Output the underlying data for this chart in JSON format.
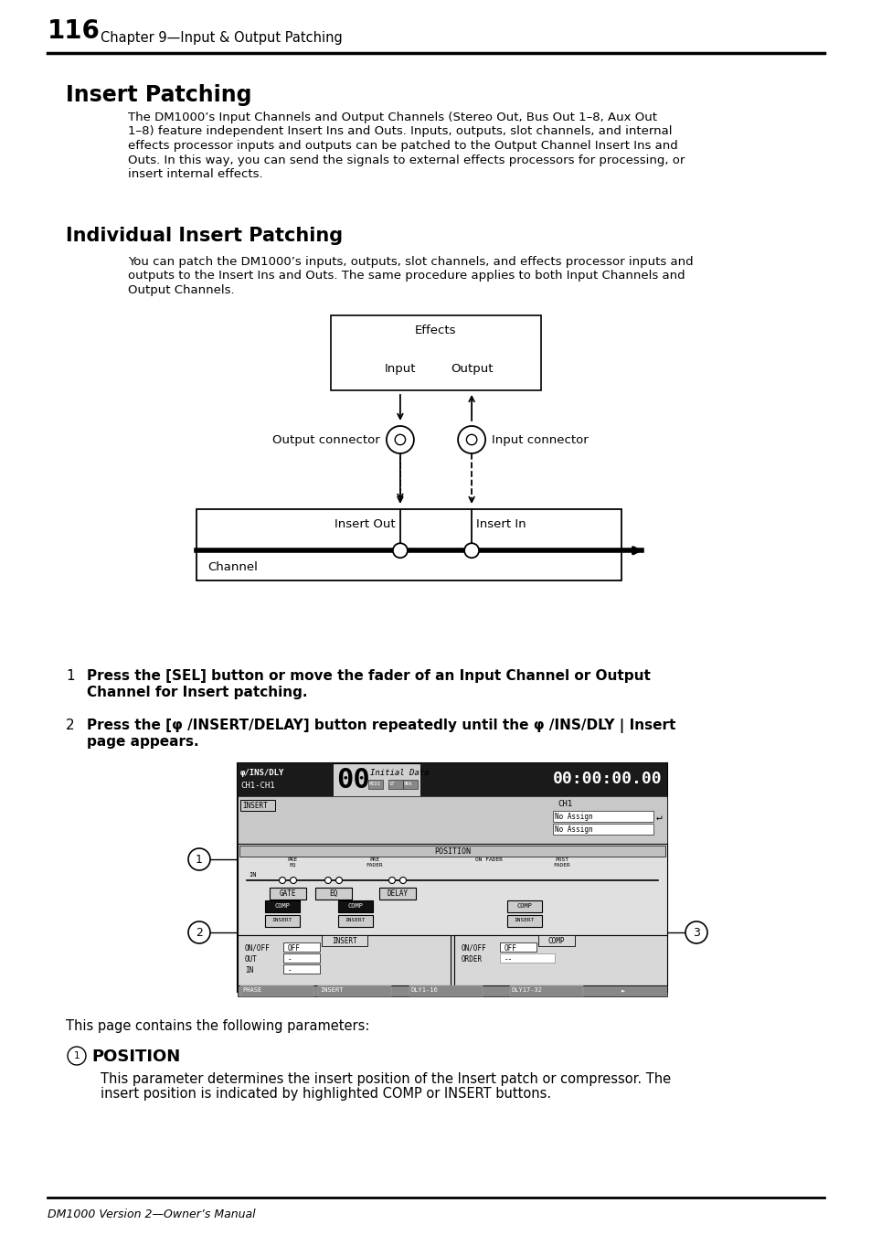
{
  "page_number": "116",
  "chapter_title": "Chapter 9—Input & Output Patching",
  "section1_title": "Insert Patching",
  "section1_body_lines": [
    "The DM1000’s Input Channels and Output Channels (Stereo Out, Bus Out 1–8, Aux Out",
    "1–8) feature independent Insert Ins and Outs. Inputs, outputs, slot channels, and internal",
    "effects processor inputs and outputs can be patched to the Output Channel Insert Ins and",
    "Outs. In this way, you can send the signals to external effects processors for processing, or",
    "insert internal effects."
  ],
  "section2_title": "Individual Insert Patching",
  "section2_body_lines": [
    "You can patch the DM1000’s inputs, outputs, slot channels, and effects processor inputs and",
    "outputs to the Insert Ins and Outs. The same procedure applies to both Input Channels and",
    "Output Channels."
  ],
  "step1_bold": "Press the [SEL] button or move the fader of an Input Channel or Output\nChannel for Insert patching.",
  "step2_bold": "Press the [φ /INSERT/DELAY] button repeatedly until the φ /INS/DLY | Insert\npage appears.",
  "footer_text": "DM1000 Version 2—Owner’s Manual",
  "position_note": "This page contains the following parameters:",
  "position_body_lines": [
    "This parameter determines the insert position of the Insert patch or compressor. The",
    "insert position is indicated by highlighted COMP or INSERT buttons."
  ],
  "bg_color": "#ffffff",
  "text_color": "#000000"
}
